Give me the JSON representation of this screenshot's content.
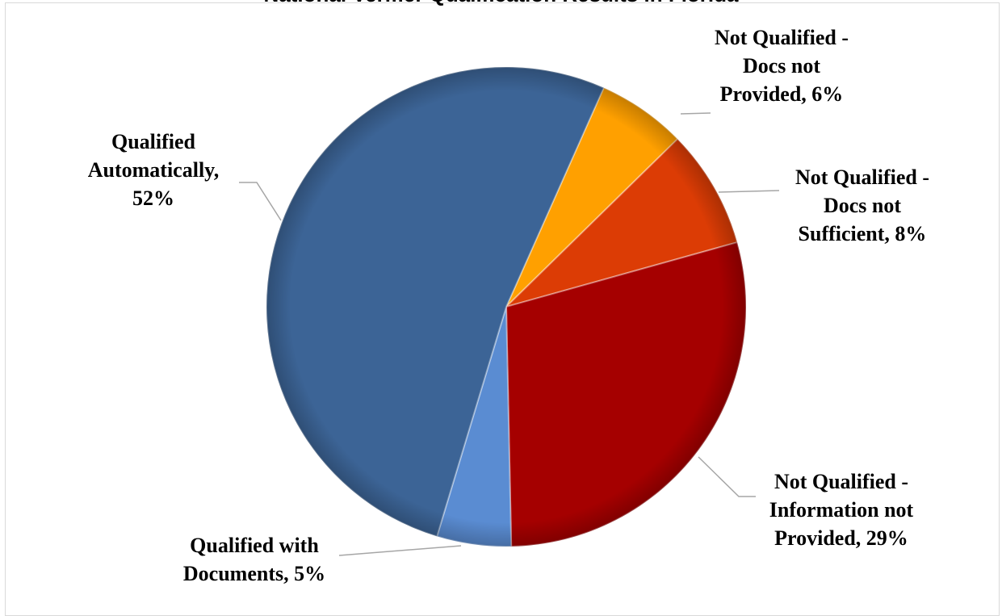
{
  "chart_data": {
    "type": "pie",
    "title": "National Verifier Qualification Results in Florida",
    "slices": [
      {
        "name": "Not Qualified - Docs not Provided",
        "value": 6,
        "label_lines": [
          "Not Qualified -",
          "Docs not",
          "Provided, 6%"
        ],
        "color": "#ffa000"
      },
      {
        "name": "Not Qualified - Docs not Sufficient",
        "value": 8,
        "label_lines": [
          "Not Qualified -",
          "Docs not",
          "Sufficient, 8%"
        ],
        "color": "#dc3c05"
      },
      {
        "name": "Not Qualified - Information not Provided",
        "value": 29,
        "label_lines": [
          "Not Qualified -",
          "Information not",
          "Provided, 29%"
        ],
        "color": "#a50000"
      },
      {
        "name": "Qualified with Documents",
        "value": 5,
        "label_lines": [
          "Qualified with",
          "Documents, 5%"
        ],
        "color": "#5a8cd2"
      },
      {
        "name": "Qualified Automatically",
        "value": 52,
        "label_lines": [
          "Qualified",
          "Automatically,",
          "52%"
        ],
        "color": "#3c6496"
      }
    ]
  }
}
